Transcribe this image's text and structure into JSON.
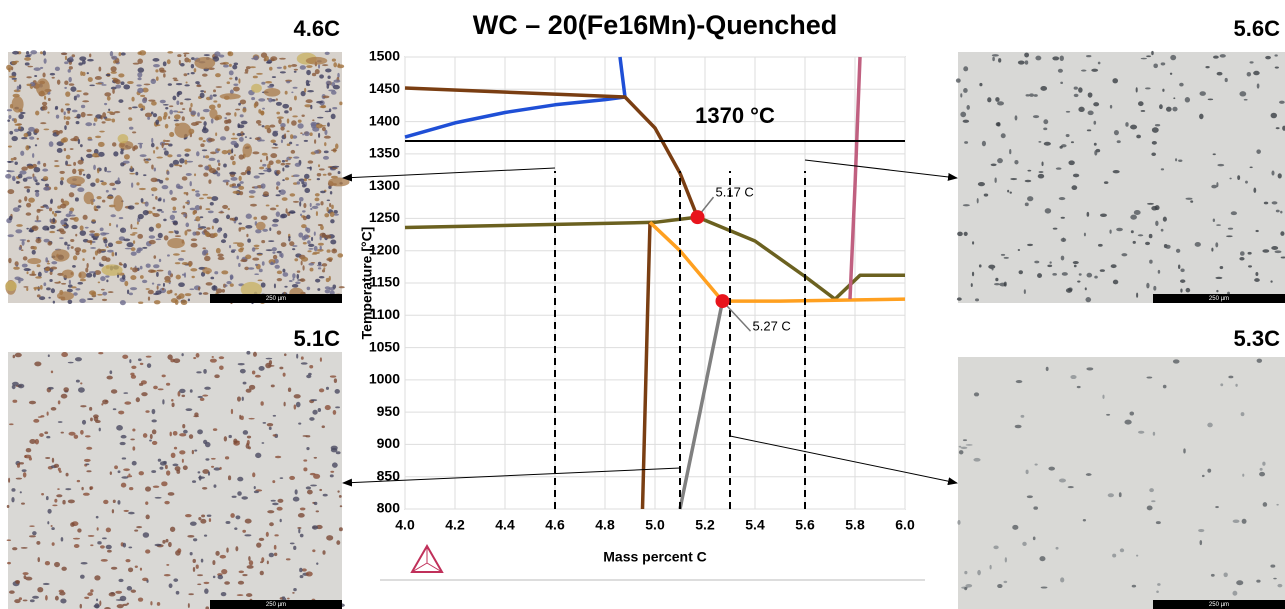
{
  "chart_data": {
    "type": "line",
    "title": "WC – 20(Fe16Mn)-Quenched",
    "xlabel": "Mass percent C",
    "ylabel": "Temperature [°C]",
    "xlim": [
      4,
      6
    ],
    "ylim": [
      800,
      1500
    ],
    "xticks": [
      {
        "value": 4,
        "label": "4.0"
      },
      4.2,
      4.4,
      4.6,
      4.8,
      {
        "value": 5,
        "label": "5.0"
      },
      5.2,
      5.4,
      5.6,
      5.8,
      {
        "value": 6,
        "label": "6.0"
      }
    ],
    "yticks": [
      800,
      850,
      900,
      950,
      1000,
      1050,
      1100,
      1150,
      1200,
      1250,
      1300,
      1350,
      1400,
      1450,
      1500
    ],
    "grid": true,
    "series": [
      {
        "color": "#1f4fd6",
        "x": [
          4.0,
          4.2,
          4.4,
          4.6,
          4.8,
          4.88,
          4.86
        ],
        "values": [
          1376,
          1398,
          1414,
          1426,
          1434,
          1438,
          1500
        ]
      },
      {
        "color": "#7a3e12",
        "x": [
          4.0,
          4.88,
          5.0,
          5.1,
          5.17
        ],
        "values": [
          1452,
          1438,
          1390,
          1320,
          1252
        ]
      },
      {
        "color": "#6b6120",
        "x": [
          4.0,
          5.0,
          5.17,
          5.4,
          5.6,
          5.72,
          5.82,
          6.0
        ],
        "values": [
          1236,
          1244,
          1252,
          1215,
          1160,
          1125,
          1162,
          1162
        ]
      },
      {
        "color": "#7a3e12",
        "x": [
          4.98,
          4.97,
          4.96,
          4.95
        ],
        "values": [
          1244,
          1100,
          950,
          800
        ]
      },
      {
        "color": "#ffa020",
        "x": [
          4.98,
          5.1,
          5.27,
          5.5,
          6.0
        ],
        "values": [
          1244,
          1200,
          1122,
          1122,
          1125
        ]
      },
      {
        "color": "#808080",
        "x": [
          5.27,
          5.18,
          5.1
        ],
        "values": [
          1122,
          950,
          800
        ]
      },
      {
        "color": "#c06080",
        "x": [
          5.78,
          5.8,
          5.82
        ],
        "values": [
          1125,
          1300,
          1500
        ]
      }
    ],
    "hline": {
      "value": 1370,
      "label": "1370 °C"
    },
    "vlines": [
      4.6,
      5.1,
      5.3,
      5.6
    ],
    "points": [
      {
        "x": 5.17,
        "y": 1252,
        "label": "5.17 C"
      },
      {
        "x": 5.27,
        "y": 1122,
        "label": "5.27 C"
      }
    ]
  },
  "panels": [
    {
      "label": "4.6C",
      "scale_bar": "250 µm"
    },
    {
      "label": "5.1C",
      "scale_bar": "250 µm"
    },
    {
      "label": "5.6C",
      "scale_bar": "250 µm"
    },
    {
      "label": "5.3C",
      "scale_bar": "250 µm"
    }
  ]
}
